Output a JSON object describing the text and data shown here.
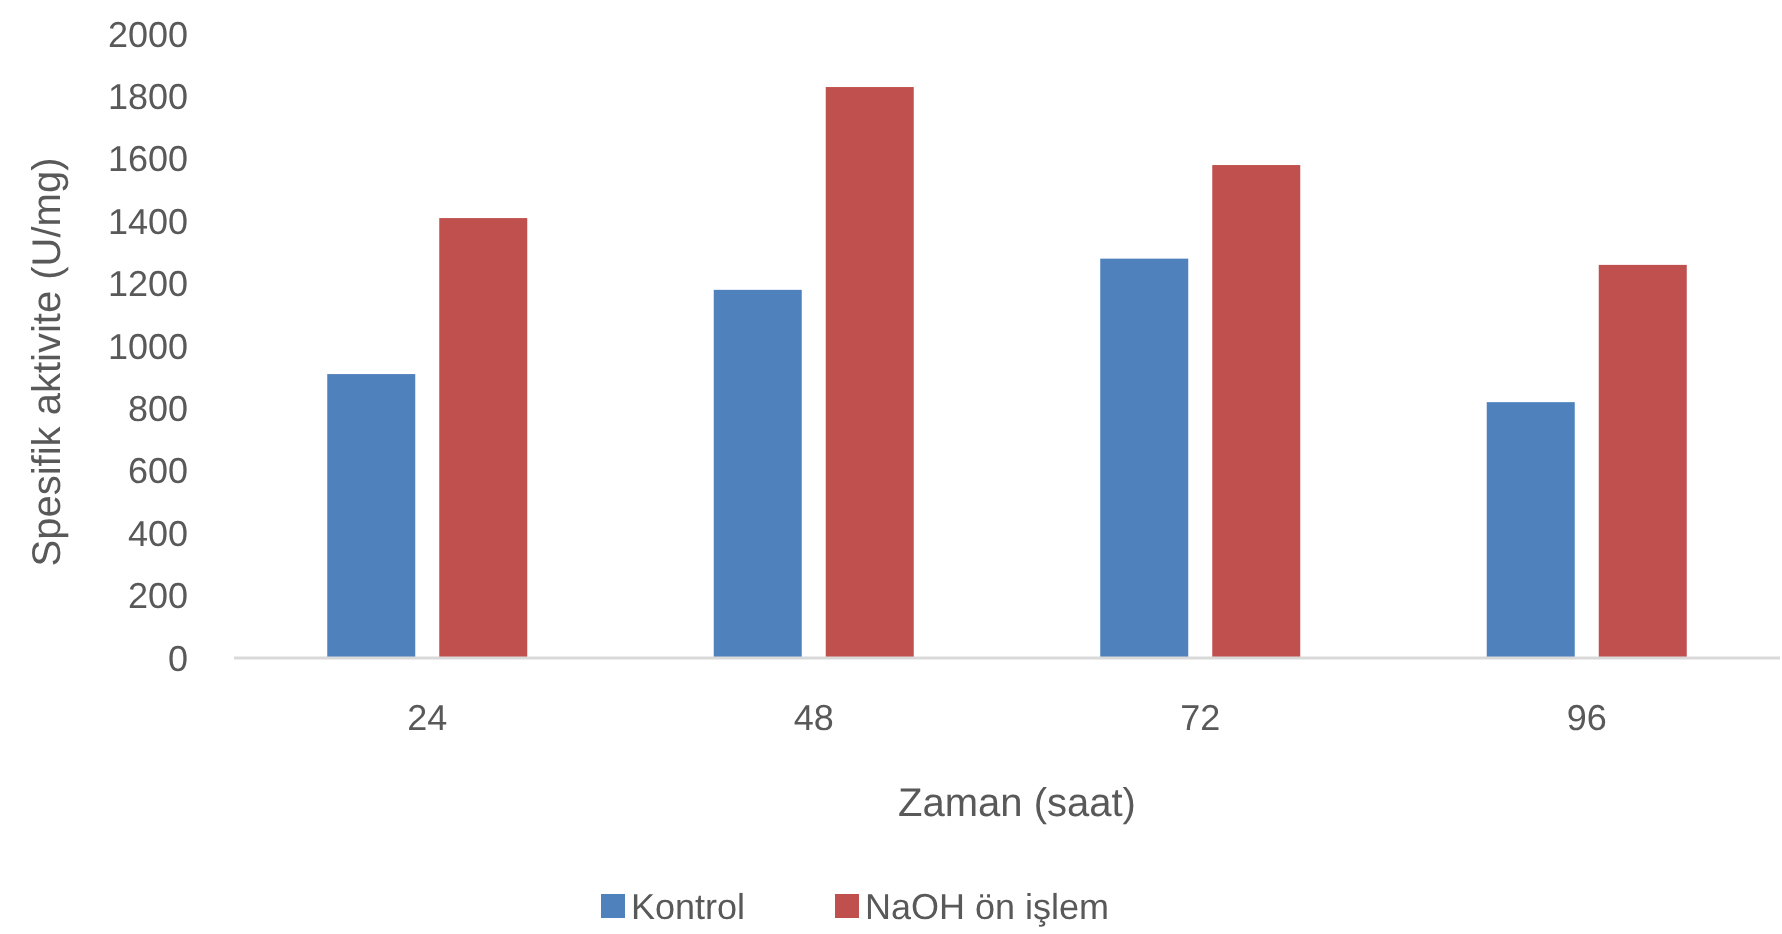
{
  "chart_data": {
    "type": "bar",
    "xlabel": "Zaman (saat)",
    "ylabel": "Spesifik aktivite (U/mg)",
    "categories": [
      "24",
      "48",
      "72",
      "96"
    ],
    "series": [
      {
        "name": "Kontrol",
        "color": "#4f81bd",
        "values": [
          910,
          1180,
          1280,
          820
        ]
      },
      {
        "name": "NaOH ön işlem",
        "color": "#c0504d",
        "values": [
          1410,
          1830,
          1580,
          1260
        ]
      }
    ],
    "ylim": [
      0,
      2000
    ],
    "yticks": [
      0,
      200,
      400,
      600,
      800,
      1000,
      1200,
      1400,
      1600,
      1800,
      2000
    ],
    "grid": false,
    "legend": "bottom"
  }
}
